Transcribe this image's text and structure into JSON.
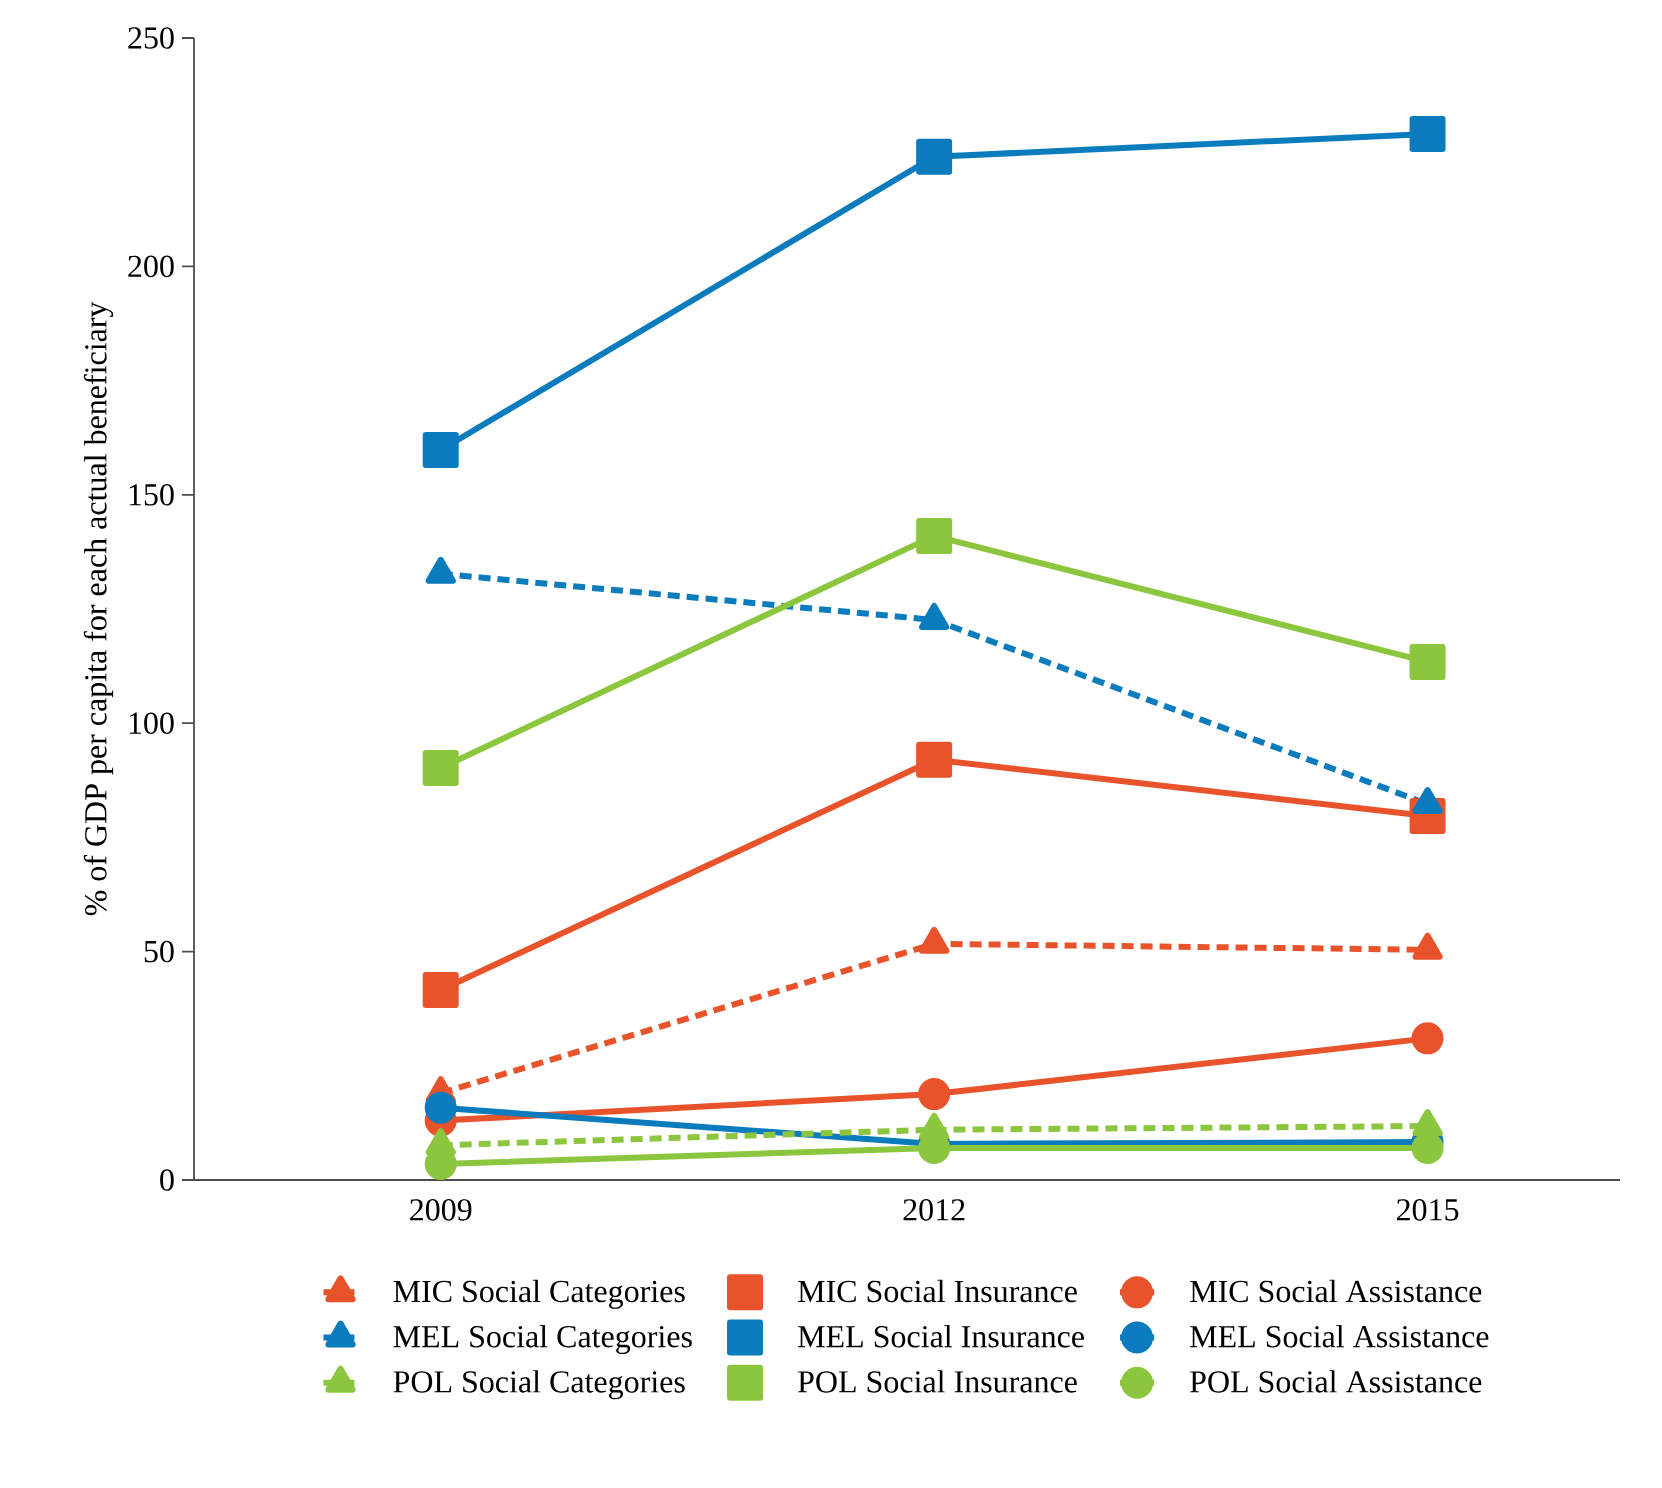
{
  "chart_data": {
    "type": "line",
    "ylabel": "% of GDP per capita for each actual beneficiary",
    "categories": [
      "2009",
      "2012",
      "2015"
    ],
    "ylim": [
      0,
      250
    ],
    "yticks": [
      0,
      50,
      100,
      150,
      200,
      250
    ],
    "legend": "bottom",
    "grid": false,
    "series": [
      {
        "name": "MIC Social Categories",
        "color": "#e8532b",
        "marker": "triangle",
        "line_style": "dashed",
        "values": [
          19,
          51.7,
          50.4
        ]
      },
      {
        "name": "MIC Social Insurance",
        "color": "#e8532b",
        "marker": "square",
        "line_style": "solid",
        "values": [
          41.6,
          92,
          79.7
        ]
      },
      {
        "name": "MIC Social Assistance",
        "color": "#e8532b",
        "marker": "circle",
        "line_style": "solid",
        "values": [
          13,
          18.8,
          31
        ]
      },
      {
        "name": "MEL Social Categories",
        "color": "#0a7bbd",
        "marker": "triangle",
        "line_style": "dashed",
        "values": [
          132.7,
          122.6,
          82.3
        ]
      },
      {
        "name": "MEL Social Insurance",
        "color": "#0a7bbd",
        "marker": "square",
        "line_style": "solid",
        "values": [
          159.8,
          224,
          229
        ]
      },
      {
        "name": "MEL Social Assistance",
        "color": "#0a7bbd",
        "marker": "circle",
        "line_style": "solid",
        "values": [
          15.8,
          7.9,
          8.3
        ]
      },
      {
        "name": "POL Social Categories",
        "color": "#8cc63f",
        "marker": "triangle",
        "line_style": "dashed",
        "values": [
          7.6,
          11,
          11.8
        ]
      },
      {
        "name": "POL Social Insurance",
        "color": "#8cc63f",
        "marker": "square",
        "line_style": "solid",
        "values": [
          90.2,
          141,
          113.4
        ]
      },
      {
        "name": "POL Social Assistance",
        "color": "#8cc63f",
        "marker": "circle",
        "line_style": "solid",
        "values": [
          3.5,
          7,
          7
        ]
      }
    ]
  }
}
